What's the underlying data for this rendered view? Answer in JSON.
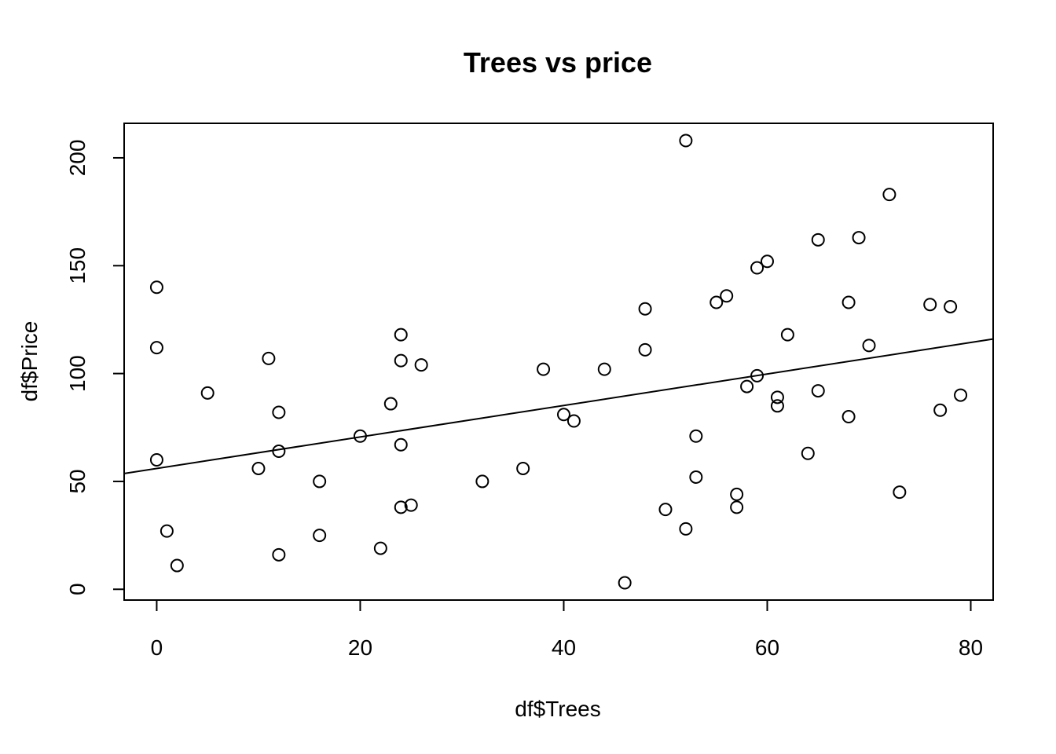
{
  "chart_data": {
    "type": "scatter",
    "title": "Trees vs price",
    "xlabel": "df$Trees",
    "ylabel": "df$Price",
    "xlim": [
      -3.2,
      82.2
    ],
    "ylim": [
      -5,
      216
    ],
    "xticks": [
      0,
      20,
      40,
      60,
      80
    ],
    "yticks": [
      0,
      50,
      100,
      150,
      200
    ],
    "grid": false,
    "legend": "none",
    "x": [
      0,
      0,
      0,
      1,
      2,
      5,
      10,
      11,
      12,
      12,
      12,
      16,
      16,
      20,
      22,
      23,
      24,
      24,
      24,
      24,
      25,
      26,
      32,
      36,
      38,
      40,
      41,
      44,
      46,
      48,
      48,
      50,
      52,
      52,
      53,
      53,
      55,
      56,
      57,
      57,
      58,
      59,
      59,
      60,
      61,
      61,
      62,
      64,
      65,
      65,
      68,
      68,
      69,
      70,
      72,
      73,
      76,
      77,
      78,
      79
    ],
    "y": [
      140,
      112,
      60,
      27,
      11,
      91,
      56,
      107,
      82,
      64,
      16,
      50,
      25,
      71,
      19,
      86,
      118,
      106,
      67,
      38,
      39,
      104,
      50,
      56,
      102,
      81,
      78,
      102,
      3,
      130,
      111,
      37,
      208,
      28,
      71,
      52,
      133,
      136,
      44,
      38,
      94,
      149,
      99,
      152,
      89,
      85,
      118,
      63,
      162,
      92,
      133,
      80,
      163,
      113,
      183,
      45,
      132,
      83,
      131,
      90
    ],
    "regression_line": {
      "intercept": 56,
      "slope": 0.73
    }
  }
}
